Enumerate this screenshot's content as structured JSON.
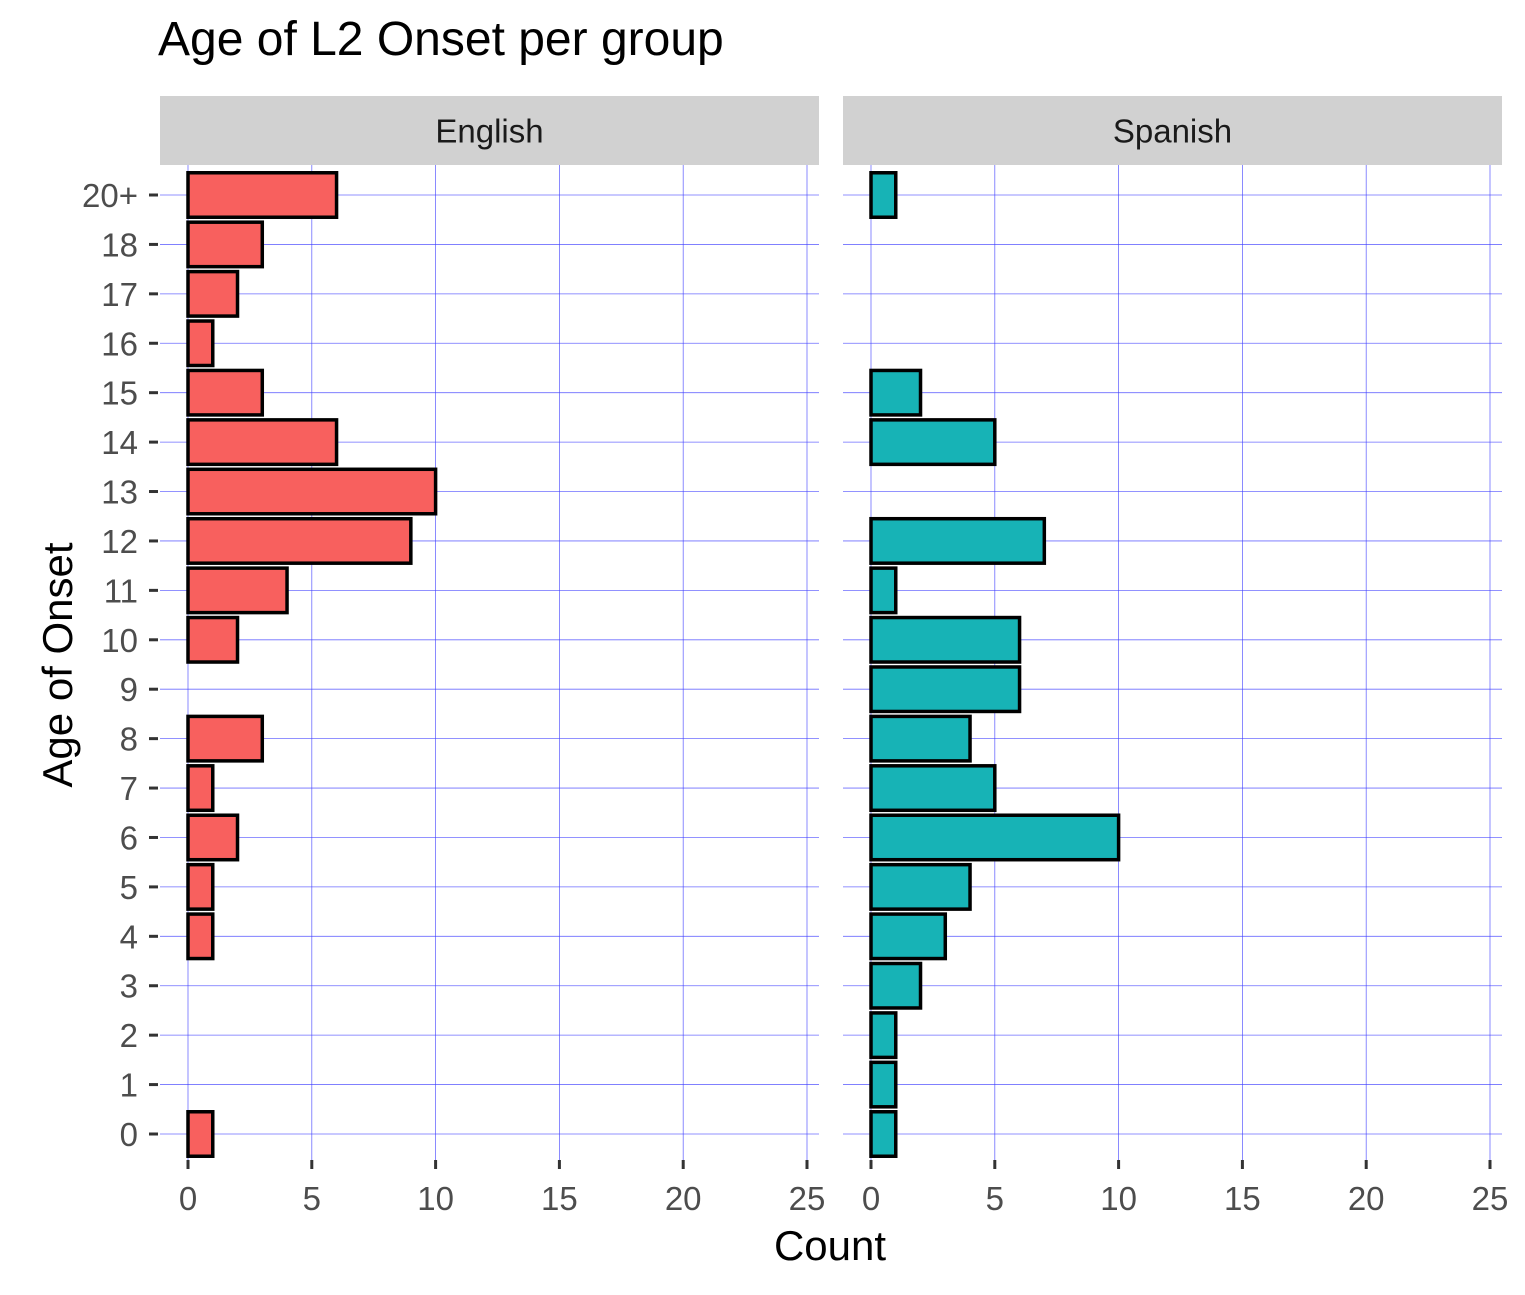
{
  "chart_data": {
    "type": "bar",
    "orientation": "horizontal",
    "title": "Age of L2 Onset per group",
    "xlabel": "Count",
    "ylabel": "Age of Onset",
    "categories": [
      "0",
      "1",
      "2",
      "3",
      "4",
      "5",
      "6",
      "7",
      "8",
      "9",
      "10",
      "11",
      "12",
      "13",
      "14",
      "15",
      "16",
      "17",
      "18",
      "20+"
    ],
    "xlim": [
      0,
      26
    ],
    "xticks": [
      0,
      5,
      10,
      15,
      20,
      25
    ],
    "grid": true,
    "panels": [
      {
        "name": "English",
        "color": "#F8605E",
        "values": [
          1,
          0,
          0,
          0,
          1,
          1,
          2,
          1,
          3,
          0,
          2,
          4,
          9,
          10,
          6,
          3,
          1,
          2,
          3,
          6
        ]
      },
      {
        "name": "Spanish",
        "color": "#17B3B6",
        "values": [
          1,
          1,
          1,
          2,
          3,
          4,
          10,
          5,
          4,
          6,
          6,
          1,
          7,
          0,
          5,
          2,
          0,
          0,
          0,
          1
        ]
      }
    ]
  }
}
